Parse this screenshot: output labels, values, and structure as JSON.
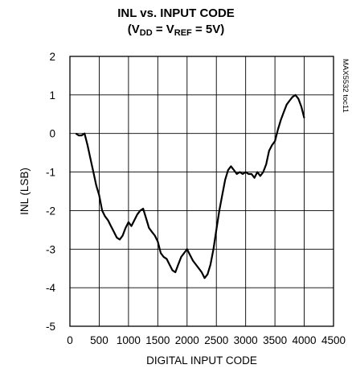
{
  "chart_data": {
    "type": "line",
    "title_line1": "INL vs. INPUT CODE",
    "title_line2_parts": [
      "(V",
      "DD",
      " = V",
      "REF",
      " = 5V)"
    ],
    "xlabel": "DIGITAL INPUT CODE",
    "ylabel": "INL (LSB)",
    "figure_code": "MAX5532 toc11",
    "xlim": [
      0,
      4500
    ],
    "ylim": [
      -5,
      2
    ],
    "xticks": [
      0,
      500,
      1000,
      1500,
      2000,
      2500,
      3000,
      3500,
      4000,
      4500
    ],
    "yticks": [
      2,
      1,
      0,
      -1,
      -2,
      -3,
      -4,
      -5
    ],
    "grid": true,
    "series": [
      {
        "x": [
          100,
          150,
          200,
          250,
          300,
          350,
          400,
          450,
          500,
          550,
          600,
          650,
          700,
          750,
          800,
          850,
          900,
          950,
          1000,
          1050,
          1100,
          1150,
          1200,
          1250,
          1300,
          1350,
          1400,
          1450,
          1500,
          1550,
          1600,
          1650,
          1700,
          1750,
          1800,
          1850,
          1900,
          1950,
          2000,
          2050,
          2100,
          2150,
          2200,
          2250,
          2300,
          2350,
          2400,
          2450,
          2500,
          2550,
          2600,
          2650,
          2700,
          2750,
          2800,
          2850,
          2900,
          2950,
          3000,
          3050,
          3100,
          3150,
          3200,
          3250,
          3300,
          3350,
          3400,
          3450,
          3500,
          3550,
          3600,
          3650,
          3700,
          3750,
          3800,
          3850,
          3900,
          3950,
          4000
        ],
        "y": [
          0.0,
          -0.05,
          -0.05,
          0.0,
          -0.3,
          -0.65,
          -1.0,
          -1.35,
          -1.6,
          -2.0,
          -2.15,
          -2.25,
          -2.4,
          -2.55,
          -2.7,
          -2.75,
          -2.65,
          -2.45,
          -2.3,
          -2.4,
          -2.25,
          -2.1,
          -2.0,
          -1.95,
          -2.2,
          -2.45,
          -2.55,
          -2.65,
          -2.8,
          -3.1,
          -3.2,
          -3.25,
          -3.4,
          -3.55,
          -3.6,
          -3.4,
          -3.2,
          -3.1,
          -3.0,
          -3.15,
          -3.3,
          -3.4,
          -3.5,
          -3.6,
          -3.75,
          -3.65,
          -3.4,
          -3.0,
          -2.5,
          -2.0,
          -1.6,
          -1.2,
          -0.95,
          -0.85,
          -0.95,
          -1.05,
          -1.0,
          -1.05,
          -1.0,
          -1.05,
          -1.05,
          -1.15,
          -1.0,
          -1.1,
          -1.0,
          -0.8,
          -0.45,
          -0.3,
          -0.2,
          0.1,
          0.35,
          0.55,
          0.75,
          0.85,
          0.95,
          1.0,
          0.9,
          0.7,
          0.4
        ]
      }
    ]
  }
}
